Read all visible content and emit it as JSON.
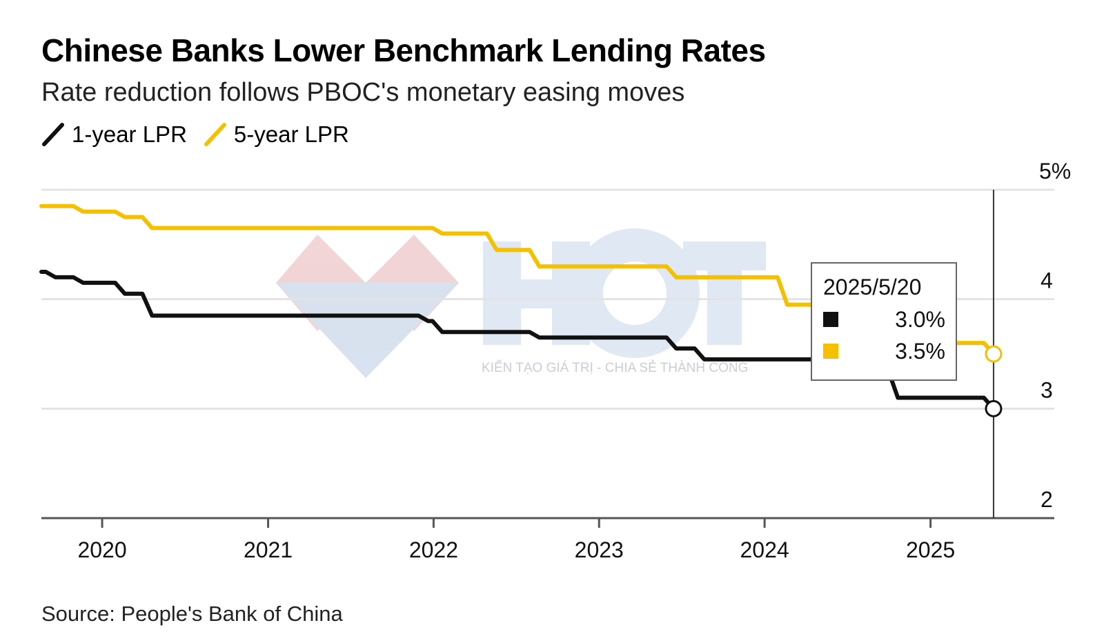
{
  "title": "Chinese Banks Lower Benchmark Lending Rates",
  "subtitle": "Rate reduction follows PBOC's monetary easing moves",
  "source": "Source: People's Bank of China",
  "watermark": {
    "logo_text": "HCT",
    "tagline": "KIẾN TẠO GIÁ TRỊ - CHIA SẺ THÀNH CÔNG"
  },
  "colors": {
    "one_year": "#111111",
    "five_year": "#f5c000",
    "grid": "#e3e3e3",
    "axis": "#555555"
  },
  "tooltip": {
    "date": "2025/5/20",
    "one_year_value": "3.0%",
    "five_year_value": "3.5%"
  },
  "chart_data": {
    "type": "line",
    "title": "Chinese Banks Lower Benchmark Lending Rates",
    "subtitle": "Rate reduction follows PBOC's monetary easing moves",
    "x_type": "date",
    "xlim": [
      "2019-08-20",
      "2025-10-01"
    ],
    "ylim": [
      2,
      5
    ],
    "y_ticks": [
      2,
      3,
      4,
      5
    ],
    "y_tick_labels": [
      "2",
      "3",
      "4",
      "5%"
    ],
    "x_ticks": [
      "2020-01-01",
      "2021-01-01",
      "2022-01-01",
      "2023-01-01",
      "2024-01-01",
      "2025-01-01"
    ],
    "x_tick_labels": [
      "2020",
      "2021",
      "2022",
      "2023",
      "2024",
      "2025"
    ],
    "grid": true,
    "legend_position": "top-left",
    "series": [
      {
        "name": "1-year LPR",
        "color": "#111111",
        "step": true,
        "points": [
          [
            "2019-08-20",
            4.25
          ],
          [
            "2019-09-20",
            4.2
          ],
          [
            "2019-11-20",
            4.15
          ],
          [
            "2020-02-20",
            4.05
          ],
          [
            "2020-04-20",
            3.85
          ],
          [
            "2021-12-20",
            3.8
          ],
          [
            "2022-01-20",
            3.7
          ],
          [
            "2022-08-22",
            3.65
          ],
          [
            "2023-06-20",
            3.55
          ],
          [
            "2023-08-21",
            3.45
          ],
          [
            "2024-07-22",
            3.35
          ],
          [
            "2024-10-21",
            3.1
          ],
          [
            "2025-05-20",
            3.0
          ]
        ]
      },
      {
        "name": "5-year LPR",
        "color": "#f5c000",
        "step": true,
        "points": [
          [
            "2019-08-20",
            4.85
          ],
          [
            "2019-11-20",
            4.8
          ],
          [
            "2020-02-20",
            4.75
          ],
          [
            "2020-04-20",
            4.65
          ],
          [
            "2022-01-20",
            4.6
          ],
          [
            "2022-05-20",
            4.45
          ],
          [
            "2022-08-22",
            4.3
          ],
          [
            "2023-06-20",
            4.2
          ],
          [
            "2024-02-20",
            3.95
          ],
          [
            "2024-07-22",
            3.85
          ],
          [
            "2024-10-21",
            3.6
          ],
          [
            "2025-05-20",
            3.5
          ]
        ]
      }
    ]
  }
}
